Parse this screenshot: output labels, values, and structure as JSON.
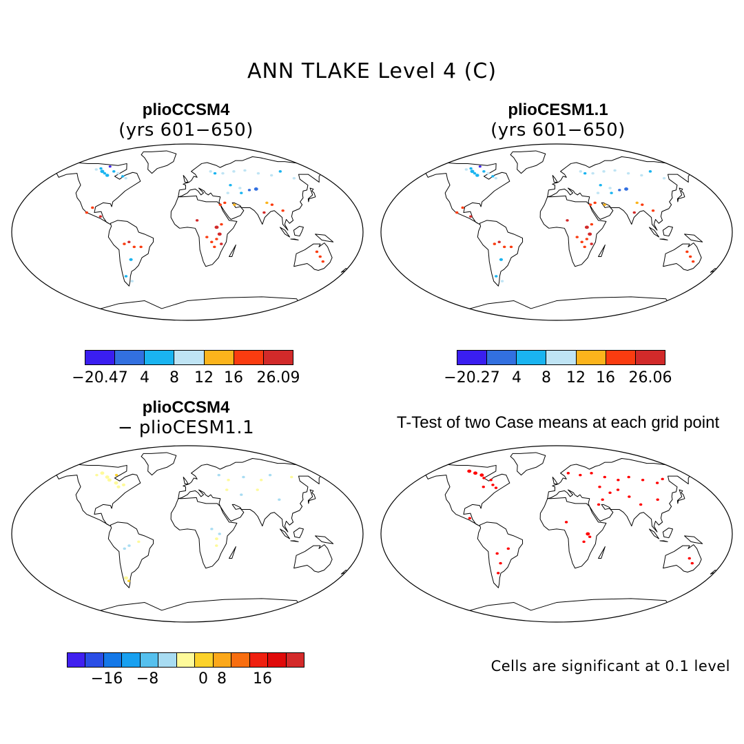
{
  "title": "ANN TLAKE Level 4 (C)",
  "panels": [
    {
      "title": "plioCCSM4",
      "subtitle": "(yrs 601−650)"
    },
    {
      "title": "plioCESM1.1",
      "subtitle": "(yrs 601−650)"
    },
    {
      "title": "plioCCSM4",
      "subtitle": "− plioCESM1.1"
    },
    {
      "title": "T-Test of two Case means at each grid point",
      "subtitle": ""
    }
  ],
  "colorbars": [
    {
      "colors": [
        "#3a1ef0",
        "#3270e0",
        "#1ab4f0",
        "#bfe4f4",
        "#fbb41c",
        "#fa3c10",
        "#d22a2a"
      ],
      "labels": [
        "−20.47",
        "4",
        "8",
        "12",
        "16",
        "26.09"
      ]
    },
    {
      "colors": [
        "#3a1ef0",
        "#3270e0",
        "#1ab4f0",
        "#bfe4f4",
        "#fbb41c",
        "#fa3c10",
        "#d22a2a"
      ],
      "labels": [
        "−20.27",
        "4",
        "8",
        "12",
        "16",
        "26.06"
      ]
    },
    {
      "colors": [
        "#4020f0",
        "#2a4ee6",
        "#1478e8",
        "#18a0f0",
        "#55c0ee",
        "#a8dcf2",
        "#fefa9a",
        "#fcd22a",
        "#fca81a",
        "#f86e10",
        "#f02010",
        "#e00a0a",
        "#d42a2a"
      ],
      "labels": [
        "−16",
        "−8",
        "0",
        "8",
        "16"
      ]
    }
  ],
  "significance_note": "Cells are significant at 0.1 level"
}
